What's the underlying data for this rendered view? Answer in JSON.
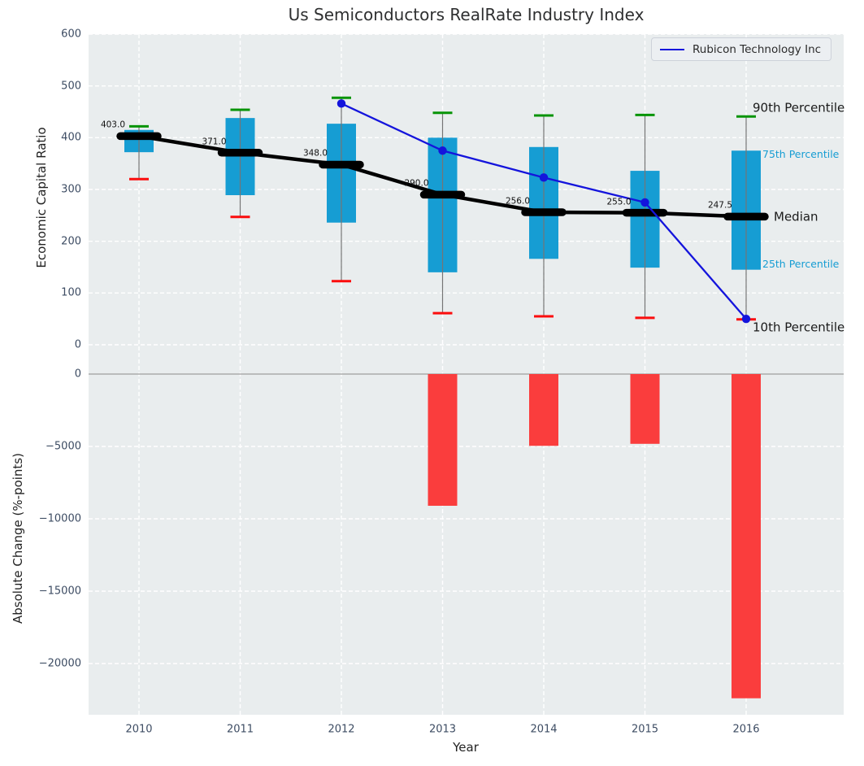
{
  "title": "Us Semiconductors RealRate Industry Index",
  "legend": {
    "label": "Rubicon Technology Inc"
  },
  "chart_data": [
    {
      "type": "box",
      "title": "Us Semiconductors RealRate Industry Index",
      "ylabel": "Economic Capital Ratio",
      "ylim": [
        -31,
        600
      ],
      "grid": true,
      "legend_position": "upper right",
      "yticks": [
        {
          "value": 0,
          "label": "0"
        },
        {
          "value": 100,
          "label": "100"
        },
        {
          "value": 200,
          "label": "200"
        },
        {
          "value": 300,
          "label": "300"
        },
        {
          "value": 400,
          "label": "400"
        },
        {
          "value": 500,
          "label": "500"
        },
        {
          "value": 600,
          "label": "600"
        }
      ],
      "categories": [
        2010,
        2011,
        2012,
        2013,
        2014,
        2015,
        2016
      ],
      "boxes": [
        {
          "year": 2010,
          "p90": 422,
          "q3": 415,
          "median": 403,
          "q1": 372,
          "p10": 320,
          "median_label": "403.0"
        },
        {
          "year": 2011,
          "p90": 454,
          "q3": 438,
          "median": 371,
          "q1": 289,
          "p10": 247,
          "median_label": "371.0"
        },
        {
          "year": 2012,
          "p90": 477,
          "q3": 427,
          "median": 348,
          "q1": 236,
          "p10": 123,
          "median_label": "348.0"
        },
        {
          "year": 2013,
          "p90": 448,
          "q3": 400,
          "median": 290,
          "q1": 140,
          "p10": 61,
          "median_label": "290.0"
        },
        {
          "year": 2014,
          "p90": 443,
          "q3": 382,
          "median": 256,
          "q1": 166,
          "p10": 55,
          "median_label": "256.0"
        },
        {
          "year": 2015,
          "p90": 444,
          "q3": 336,
          "median": 255,
          "q1": 149,
          "p10": 52,
          "median_label": "255.0"
        },
        {
          "year": 2016,
          "p90": 441,
          "q3": 375,
          "median": 247.5,
          "q1": 145,
          "p10": 49,
          "median_label": "247.5"
        }
      ],
      "series": [
        {
          "name": "Rubicon Technology Inc",
          "x": [
            2012,
            2013,
            2014,
            2015,
            2016
          ],
          "values": [
            466,
            375,
            323,
            275,
            50
          ]
        }
      ],
      "annotations": [
        {
          "text": "90th Percentile",
          "color": "#1a1a1a",
          "size": 15
        },
        {
          "text": "75th Percentile",
          "color": "#169dd3",
          "size": 12.5
        },
        {
          "text": "Median",
          "color": "#1a1a1a",
          "size": 15
        },
        {
          "text": "25th Percentile",
          "color": "#169dd3",
          "size": 12.5
        },
        {
          "text": "10th Percentile",
          "color": "#1a1a1a",
          "size": 15
        }
      ],
      "colors": {
        "box_fill": "#169dd3",
        "median": "#000000",
        "whisker": "#757575",
        "cap_high": "#079407",
        "cap_low": "#fb0d0d",
        "series_line": "#1414dc",
        "plot_background": "#e9edee",
        "gridline": "#ffffff"
      }
    },
    {
      "type": "bar",
      "ylabel": "Absolute Change (%-points)",
      "xlabel": "Year",
      "ylim": [
        -23550,
        900
      ],
      "grid": true,
      "categories": [
        2010,
        2011,
        2012,
        2013,
        2014,
        2015,
        2016
      ],
      "values": [
        null,
        null,
        null,
        -9100,
        -4960,
        -4820,
        -22400
      ],
      "yticks": [
        {
          "value": 0,
          "label": "0"
        },
        {
          "value": -5000,
          "label": "−5000"
        },
        {
          "value": -10000,
          "label": "−10000"
        },
        {
          "value": -15000,
          "label": "−15000"
        },
        {
          "value": -20000,
          "label": "−20000"
        }
      ],
      "bar_color": "#fa3d3d",
      "zero_line_color": "#ababab"
    }
  ]
}
